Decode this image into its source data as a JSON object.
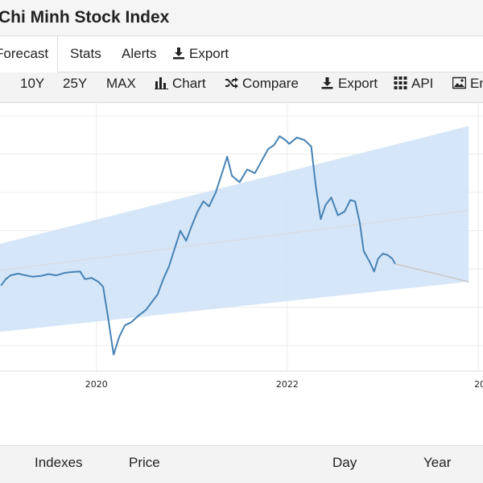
{
  "header": {
    "title": "Chi Minh Stock Index"
  },
  "tabs": [
    {
      "label": "Forecast",
      "active": true
    },
    {
      "label": "Stats"
    },
    {
      "label": "Alerts"
    },
    {
      "label": "Export",
      "icon": "download-icon"
    }
  ],
  "toolbar": {
    "ranges": [
      "10Y",
      "25Y",
      "MAX"
    ],
    "chart_label": "Chart",
    "compare_label": "Compare",
    "export_label": "Export",
    "api_label": "API",
    "embed_label": "En"
  },
  "chart_data": {
    "type": "line",
    "x_ticks": [
      "2020",
      "2022",
      "20"
    ],
    "colors": {
      "line": "#4682b4",
      "band": "#cfe2f8",
      "forecast": "#c8c8c8",
      "trend": "#d8d8d8"
    },
    "series": [
      {
        "values": [
          [
            2019.0,
            935
          ],
          [
            2019.05,
            960
          ],
          [
            2019.1,
            975
          ],
          [
            2019.18,
            982
          ],
          [
            2019.25,
            976
          ],
          [
            2019.33,
            970
          ],
          [
            2019.42,
            973
          ],
          [
            2019.5,
            980
          ],
          [
            2019.58,
            975
          ],
          [
            2019.67,
            985
          ],
          [
            2019.75,
            988
          ],
          [
            2019.83,
            990
          ],
          [
            2019.88,
            960
          ],
          [
            2019.95,
            965
          ],
          [
            2020.02,
            950
          ],
          [
            2020.07,
            930
          ],
          [
            2020.12,
            815
          ],
          [
            2020.18,
            665
          ],
          [
            2020.24,
            735
          ],
          [
            2020.3,
            780
          ],
          [
            2020.36,
            790
          ],
          [
            2020.45,
            820
          ],
          [
            2020.52,
            840
          ],
          [
            2020.58,
            870
          ],
          [
            2020.64,
            900
          ],
          [
            2020.7,
            960
          ],
          [
            2020.76,
            1010
          ],
          [
            2020.82,
            1080
          ],
          [
            2020.88,
            1150
          ],
          [
            2020.94,
            1110
          ],
          [
            2021.0,
            1170
          ],
          [
            2021.06,
            1225
          ],
          [
            2021.12,
            1265
          ],
          [
            2021.18,
            1245
          ],
          [
            2021.25,
            1300
          ],
          [
            2021.32,
            1380
          ],
          [
            2021.37,
            1440
          ],
          [
            2021.42,
            1365
          ],
          [
            2021.5,
            1340
          ],
          [
            2021.58,
            1390
          ],
          [
            2021.66,
            1375
          ],
          [
            2021.74,
            1430
          ],
          [
            2021.8,
            1470
          ],
          [
            2021.86,
            1485
          ],
          [
            2021.92,
            1520
          ],
          [
            2021.98,
            1505
          ],
          [
            2022.02,
            1490
          ],
          [
            2022.1,
            1515
          ],
          [
            2022.18,
            1505
          ],
          [
            2022.25,
            1480
          ],
          [
            2022.3,
            1320
          ],
          [
            2022.35,
            1195
          ],
          [
            2022.4,
            1250
          ],
          [
            2022.46,
            1280
          ],
          [
            2022.53,
            1210
          ],
          [
            2022.6,
            1225
          ],
          [
            2022.66,
            1270
          ],
          [
            2022.71,
            1265
          ],
          [
            2022.76,
            1180
          ],
          [
            2022.8,
            1070
          ],
          [
            2022.86,
            1030
          ],
          [
            2022.91,
            990
          ],
          [
            2022.95,
            1040
          ],
          [
            2023.0,
            1060
          ],
          [
            2023.05,
            1055
          ],
          [
            2023.1,
            1040
          ],
          [
            2023.13,
            1020
          ]
        ]
      }
    ],
    "forecast": [
      [
        2023.13,
        1020
      ],
      [
        2023.9,
        950
      ]
    ],
    "band_upper": [
      [
        2018.9,
        1090
      ],
      [
        2023.9,
        1560
      ]
    ],
    "band_lower": [
      [
        2018.9,
        750
      ],
      [
        2023.9,
        950
      ]
    ],
    "trend": [
      [
        2018.9,
        990
      ],
      [
        2023.9,
        1230
      ]
    ],
    "x_range": [
      2018.99,
      2024.05
    ],
    "y_range": [
      600,
      1650
    ],
    "grid": true
  },
  "footer": {
    "columns": [
      "Indexes",
      "Price",
      "Day",
      "Year"
    ]
  }
}
